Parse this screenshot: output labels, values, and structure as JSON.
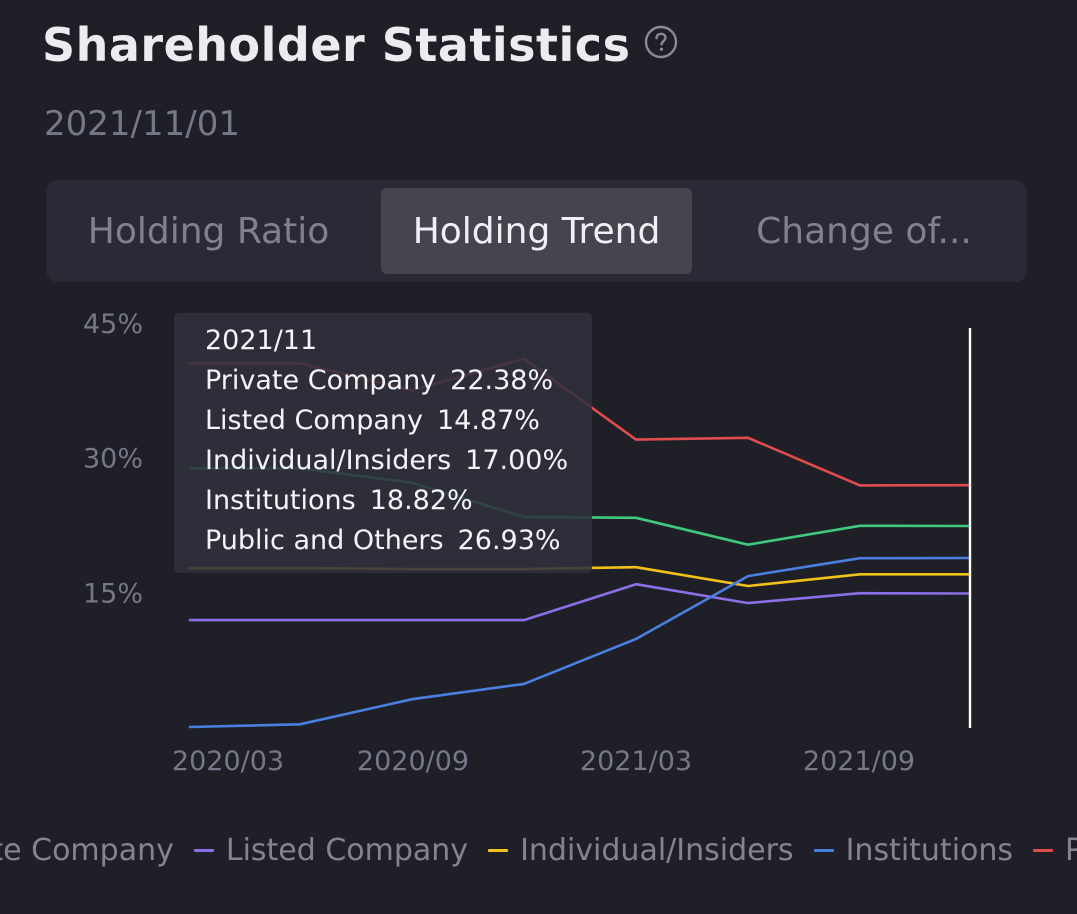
{
  "header": {
    "title": "Shareholder Statistics",
    "date": "2021/11/01",
    "help_icon": "question-circle-icon"
  },
  "tabs": [
    {
      "label": "Holding Ratio",
      "active": false
    },
    {
      "label": "Holding Trend",
      "active": true
    },
    {
      "label": "Change of...",
      "active": false
    }
  ],
  "tooltip": {
    "date": "2021/11",
    "rows": [
      {
        "label": "Private Company",
        "value": "22.38%"
      },
      {
        "label": "Listed Company",
        "value": "14.87%"
      },
      {
        "label": "Individual/Insiders",
        "value": "17.00%"
      },
      {
        "label": "Institutions",
        "value": "18.82%"
      },
      {
        "label": "Public and Others",
        "value": "26.93%"
      }
    ]
  },
  "chart_data": {
    "type": "line",
    "x": [
      "2020/02",
      "2020/05",
      "2020/08",
      "2020/12",
      "2021/04",
      "2021/07",
      "2021/10",
      "2021/11"
    ],
    "xtick_labels": [
      "2020/03",
      "2020/09",
      "2021/03",
      "2021/09"
    ],
    "ytick_labels": [
      "15%",
      "30%",
      "45%"
    ],
    "yticks": [
      15,
      30,
      45
    ],
    "ylim": [
      0,
      45
    ],
    "grid": false,
    "legend_position": "bottom",
    "series": [
      {
        "name": "Private Company",
        "color": "#3ec97d",
        "values": [
          28.8,
          28.8,
          27.2,
          23.4,
          23.3,
          20.3,
          22.4,
          22.38
        ]
      },
      {
        "name": "Listed Company",
        "color": "#8c6ee6",
        "values": [
          11.9,
          11.9,
          11.9,
          11.9,
          15.9,
          13.8,
          14.9,
          14.87
        ]
      },
      {
        "name": "Individual/Insiders",
        "color": "#f2c21b",
        "values": [
          17.7,
          17.7,
          17.6,
          17.6,
          17.8,
          15.7,
          17.0,
          17.0
        ]
      },
      {
        "name": "Institutions",
        "color": "#4a7fe0",
        "values": [
          0.0,
          0.3,
          3.1,
          4.8,
          9.8,
          16.8,
          18.8,
          18.82
        ]
      },
      {
        "name": "Public and Others",
        "color": "#e14c4c",
        "values": [
          40.5,
          40.5,
          37.5,
          41.0,
          32.0,
          32.2,
          26.9,
          26.93
        ]
      }
    ]
  }
}
